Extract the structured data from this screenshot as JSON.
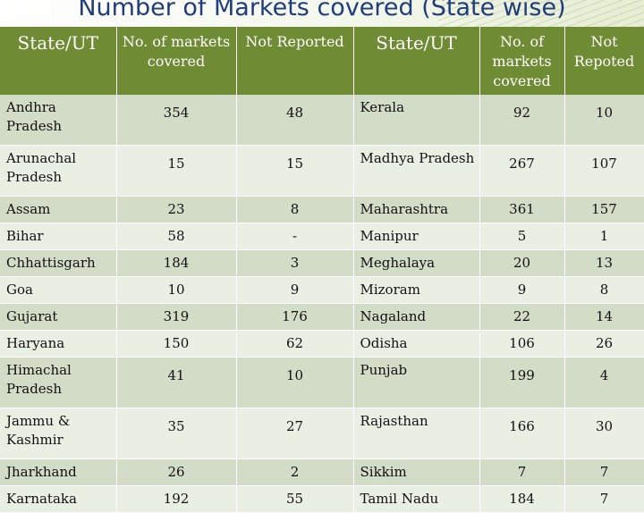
{
  "title": "Number of Markets covered (State wise)",
  "headers": [
    "State/UT",
    "No. of markets covered",
    "Not Reported",
    "State/UT",
    "No. of markets covered",
    "Not Repoted"
  ],
  "rows": [
    {
      "state1": "Andhra Pradesh",
      "markets1": "354",
      "nr1": "48",
      "state2": "Kerala",
      "markets2": "92",
      "nr2": "10"
    },
    {
      "state1": "Arunachal Pradesh",
      "markets1": "15",
      "nr1": "15",
      "state2": "Madhya Pradesh",
      "markets2": "267",
      "nr2": "107"
    },
    {
      "state1": "Assam",
      "markets1": "23",
      "nr1": "8",
      "state2": "Maharashtra",
      "markets2": "361",
      "nr2": "157"
    },
    {
      "state1": "Bihar",
      "markets1": "58",
      "nr1": "-",
      "state2": "Manipur",
      "markets2": "5",
      "nr2": "1"
    },
    {
      "state1": "Chhattisgarh",
      "markets1": "184",
      "nr1": "3",
      "state2": "Meghalaya",
      "markets2": "20",
      "nr2": "13"
    },
    {
      "state1": "Goa",
      "markets1": "10",
      "nr1": "9",
      "state2": "Mizoram",
      "markets2": "9",
      "nr2": "8"
    },
    {
      "state1": "Gujarat",
      "markets1": "319",
      "nr1": "176",
      "state2": "Nagaland",
      "markets2": "22",
      "nr2": "14"
    },
    {
      "state1": "Haryana",
      "markets1": "150",
      "nr1": "62",
      "state2": "Odisha",
      "markets2": "106",
      "nr2": "26"
    },
    {
      "state1": "Himachal Pradesh",
      "markets1": "41",
      "nr1": "10",
      "state2": "Punjab",
      "markets2": "199",
      "nr2": "4"
    },
    {
      "state1": "Jammu & Kashmir",
      "markets1": "35",
      "nr1": "27",
      "state2": "Rajasthan",
      "markets2": "166",
      "nr2": "30"
    },
    {
      "state1": "Jharkhand",
      "markets1": "26",
      "nr1": "2",
      "state2": "Sikkim",
      "markets2": "7",
      "nr2": "7"
    },
    {
      "state1": "Karnataka",
      "markets1": "192",
      "nr1": "55",
      "state2": "Tamil Nadu",
      "markets2": "184",
      "nr2": "7"
    }
  ]
}
